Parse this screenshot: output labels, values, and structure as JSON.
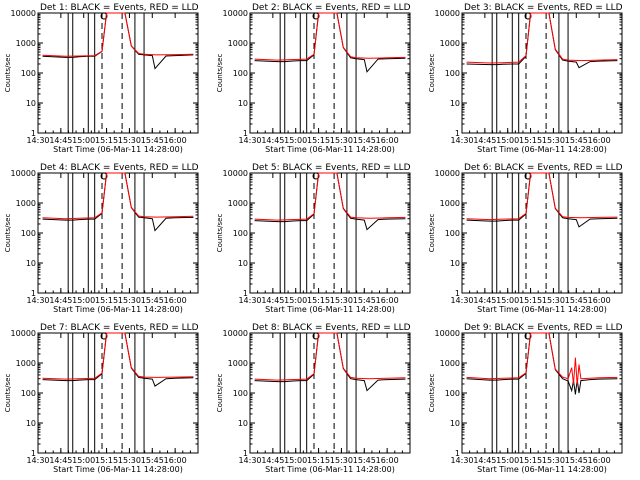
{
  "chart_data": [
    {
      "type": "line",
      "title": "Det 1: BLACK = Events, RED = LLD",
      "xlabel": "Start Time (06-Mar-11 14:28:00)",
      "ylabel": "Counts/sec",
      "yscale": "log",
      "ylim": [
        1,
        10000
      ],
      "xlim": [
        14.5,
        16.25
      ],
      "xticks": [
        "14:30",
        "14:45",
        "15:00",
        "15:15",
        "15:30",
        "15:45",
        "16:00"
      ],
      "yticks": [
        "1",
        "10",
        "100",
        "1000",
        "10000"
      ],
      "vlines_solid": [
        14.83,
        14.88,
        15.05,
        15.12,
        15.56,
        15.66
      ],
      "vlines_dashed": [
        15.2,
        15.42
      ],
      "series": [
        {
          "name": "BLACK = Events",
          "color": "#000000",
          "x": [
            14.55,
            14.8,
            14.88,
            14.95,
            15.05,
            15.12,
            15.2,
            15.25,
            15.45,
            15.52,
            15.6,
            15.66,
            15.75,
            15.78,
            15.9,
            16.0,
            16.2
          ],
          "y": [
            360,
            330,
            330,
            350,
            360,
            360,
            520,
            10000,
            10000,
            800,
            420,
            400,
            380,
            140,
            370,
            380,
            400
          ]
        },
        {
          "name": "RED = LLD",
          "color": "#ff0000",
          "x": [
            14.55,
            14.8,
            14.95,
            15.12,
            15.2,
            15.25,
            15.45,
            15.52,
            15.6,
            15.66,
            15.8,
            16.0,
            16.2
          ],
          "y": [
            390,
            360,
            370,
            380,
            530,
            10000,
            10000,
            800,
            450,
            420,
            400,
            410,
            420
          ]
        }
      ]
    },
    {
      "type": "line",
      "title": "Det 2: BLACK = Events, RED = LLD",
      "xlabel": "Start Time (06-Mar-11 14:28:00)",
      "ylabel": "Counts/sec",
      "yscale": "log",
      "ylim": [
        1,
        10000
      ],
      "xlim": [
        14.5,
        16.25
      ],
      "xticks": [
        "14:30",
        "14:45",
        "15:00",
        "15:15",
        "15:30",
        "15:45",
        "16:00"
      ],
      "yticks": [
        "1",
        "10",
        "100",
        "1000",
        "10000"
      ],
      "vlines_solid": [
        14.83,
        14.88,
        15.05,
        15.12,
        15.56,
        15.66
      ],
      "vlines_dashed": [
        15.2,
        15.42
      ],
      "series": [
        {
          "name": "BLACK = Events",
          "color": "#000000",
          "x": [
            14.55,
            14.8,
            14.88,
            14.95,
            15.05,
            15.12,
            15.2,
            15.25,
            15.45,
            15.52,
            15.6,
            15.66,
            15.75,
            15.78,
            15.9,
            16.0,
            16.2
          ],
          "y": [
            260,
            240,
            240,
            250,
            260,
            260,
            400,
            10000,
            10000,
            700,
            320,
            300,
            280,
            110,
            290,
            300,
            310
          ]
        },
        {
          "name": "RED = LLD",
          "color": "#ff0000",
          "x": [
            14.55,
            14.8,
            14.95,
            15.12,
            15.2,
            15.25,
            15.45,
            15.52,
            15.6,
            15.66,
            15.8,
            16.0,
            16.2
          ],
          "y": [
            290,
            270,
            280,
            290,
            420,
            10000,
            10000,
            720,
            350,
            320,
            310,
            320,
            330
          ]
        }
      ]
    },
    {
      "type": "line",
      "title": "Det 3: BLACK = Events, RED = LLD",
      "xlabel": "Start Time (06-Mar-11 14:28:00)",
      "ylabel": "Counts/sec",
      "yscale": "log",
      "ylim": [
        1,
        10000
      ],
      "xlim": [
        14.5,
        16.25
      ],
      "xticks": [
        "14:30",
        "14:45",
        "15:00",
        "15:15",
        "15:30",
        "15:45",
        "16:00"
      ],
      "yticks": [
        "1",
        "10",
        "100",
        "1000",
        "10000"
      ],
      "vlines_solid": [
        14.83,
        14.88,
        15.05,
        15.12,
        15.56,
        15.66
      ],
      "vlines_dashed": [
        15.2,
        15.42
      ],
      "series": [
        {
          "name": "BLACK = Events",
          "color": "#000000",
          "x": [
            14.55,
            14.8,
            14.88,
            14.95,
            15.05,
            15.12,
            15.2,
            15.25,
            15.45,
            15.52,
            15.6,
            15.66,
            15.75,
            15.78,
            15.9,
            16.0,
            16.2
          ],
          "y": [
            200,
            190,
            190,
            195,
            200,
            200,
            360,
            10000,
            10000,
            600,
            270,
            250,
            230,
            150,
            240,
            250,
            260
          ]
        },
        {
          "name": "RED = LLD",
          "color": "#ff0000",
          "x": [
            14.55,
            14.8,
            14.95,
            15.12,
            15.2,
            15.25,
            15.45,
            15.52,
            15.6,
            15.66,
            15.8,
            16.0,
            16.2
          ],
          "y": [
            230,
            215,
            220,
            230,
            380,
            10000,
            10000,
            620,
            290,
            270,
            260,
            270,
            280
          ]
        }
      ]
    },
    {
      "type": "line",
      "title": "Det 4: BLACK = Events, RED = LLD",
      "xlabel": "Start Time (06-Mar-11 14:28:00)",
      "ylabel": "Counts/sec",
      "yscale": "log",
      "ylim": [
        1,
        10000
      ],
      "xlim": [
        14.5,
        16.25
      ],
      "xticks": [
        "14:30",
        "14:45",
        "15:00",
        "15:15",
        "15:30",
        "15:45",
        "16:00"
      ],
      "yticks": [
        "1",
        "10",
        "100",
        "1000",
        "10000"
      ],
      "vlines_solid": [
        14.83,
        14.88,
        15.05,
        15.12,
        15.56,
        15.66
      ],
      "vlines_dashed": [
        15.2,
        15.42
      ],
      "series": [
        {
          "name": "BLACK = Events",
          "color": "#000000",
          "x": [
            14.55,
            14.8,
            14.88,
            14.95,
            15.05,
            15.12,
            15.2,
            15.25,
            15.45,
            15.52,
            15.6,
            15.66,
            15.75,
            15.78,
            15.9,
            16.0,
            16.2
          ],
          "y": [
            290,
            270,
            270,
            280,
            290,
            290,
            450,
            10000,
            10000,
            700,
            340,
            320,
            300,
            120,
            310,
            320,
            330
          ]
        },
        {
          "name": "RED = LLD",
          "color": "#ff0000",
          "x": [
            14.55,
            14.8,
            14.95,
            15.12,
            15.2,
            15.25,
            15.45,
            15.52,
            15.6,
            15.66,
            15.8,
            16.0,
            16.2
          ],
          "y": [
            320,
            300,
            310,
            320,
            470,
            10000,
            10000,
            720,
            370,
            350,
            340,
            350,
            360
          ]
        }
      ]
    },
    {
      "type": "line",
      "title": "Det 5: BLACK = Events, RED = LLD",
      "xlabel": "Start Time (06-Mar-11 14:28:00)",
      "ylabel": "Counts/sec",
      "yscale": "log",
      "ylim": [
        1,
        10000
      ],
      "xlim": [
        14.5,
        16.25
      ],
      "xticks": [
        "14:30",
        "14:45",
        "15:00",
        "15:15",
        "15:30",
        "15:45",
        "16:00"
      ],
      "yticks": [
        "1",
        "10",
        "100",
        "1000",
        "10000"
      ],
      "vlines_solid": [
        14.83,
        14.88,
        15.05,
        15.12,
        15.56,
        15.66
      ],
      "vlines_dashed": [
        15.2,
        15.42
      ],
      "series": [
        {
          "name": "BLACK = Events",
          "color": "#000000",
          "x": [
            14.55,
            14.8,
            14.88,
            14.95,
            15.05,
            15.12,
            15.2,
            15.25,
            15.45,
            15.52,
            15.6,
            15.66,
            15.75,
            15.78,
            15.9,
            16.0,
            16.2
          ],
          "y": [
            260,
            240,
            240,
            250,
            260,
            260,
            420,
            10000,
            10000,
            650,
            310,
            290,
            270,
            130,
            280,
            290,
            300
          ]
        },
        {
          "name": "RED = LLD",
          "color": "#ff0000",
          "x": [
            14.55,
            14.8,
            14.95,
            15.12,
            15.2,
            15.25,
            15.45,
            15.52,
            15.6,
            15.66,
            15.8,
            16.0,
            16.2
          ],
          "y": [
            290,
            270,
            280,
            290,
            440,
            10000,
            10000,
            670,
            340,
            320,
            310,
            320,
            330
          ]
        }
      ]
    },
    {
      "type": "line",
      "title": "Det 6: BLACK = Events, RED = LLD",
      "xlabel": "Start Time (06-Mar-11 14:28:00)",
      "ylabel": "Counts/sec",
      "yscale": "log",
      "ylim": [
        1,
        10000
      ],
      "xlim": [
        14.5,
        16.25
      ],
      "xticks": [
        "14:30",
        "14:45",
        "15:00",
        "15:15",
        "15:30",
        "15:45",
        "16:00"
      ],
      "yticks": [
        "1",
        "10",
        "100",
        "1000",
        "10000"
      ],
      "vlines_solid": [
        14.83,
        14.88,
        15.05,
        15.12,
        15.56,
        15.66
      ],
      "vlines_dashed": [
        15.2,
        15.42
      ],
      "series": [
        {
          "name": "BLACK = Events",
          "color": "#000000",
          "x": [
            14.55,
            14.8,
            14.88,
            14.95,
            15.05,
            15.12,
            15.2,
            15.25,
            15.45,
            15.52,
            15.6,
            15.66,
            15.75,
            15.78,
            15.9,
            16.0,
            16.2
          ],
          "y": [
            270,
            250,
            250,
            260,
            270,
            270,
            430,
            10000,
            10000,
            650,
            320,
            300,
            280,
            160,
            290,
            300,
            310
          ]
        },
        {
          "name": "RED = LLD",
          "color": "#ff0000",
          "x": [
            14.55,
            14.8,
            14.95,
            15.12,
            15.2,
            15.25,
            15.45,
            15.52,
            15.6,
            15.66,
            15.8,
            16.0,
            16.2
          ],
          "y": [
            300,
            280,
            290,
            300,
            450,
            10000,
            10000,
            670,
            350,
            330,
            320,
            330,
            340
          ]
        }
      ]
    },
    {
      "type": "line",
      "title": "Det 7: BLACK = Events, RED = LLD",
      "xlabel": "Start Time (06-Mar-11 14:28:00)",
      "ylabel": "Counts/sec",
      "yscale": "log",
      "ylim": [
        1,
        10000
      ],
      "xlim": [
        14.5,
        16.25
      ],
      "xticks": [
        "14:30",
        "14:45",
        "15:00",
        "15:15",
        "15:30",
        "15:45",
        "16:00"
      ],
      "yticks": [
        "1",
        "10",
        "100",
        "1000",
        "10000"
      ],
      "vlines_solid": [
        14.83,
        14.88,
        15.05,
        15.12,
        15.56,
        15.66
      ],
      "vlines_dashed": [
        15.2,
        15.42
      ],
      "series": [
        {
          "name": "BLACK = Events",
          "color": "#000000",
          "x": [
            14.55,
            14.8,
            14.88,
            14.95,
            15.05,
            15.12,
            15.2,
            15.25,
            15.45,
            15.52,
            15.6,
            15.66,
            15.75,
            15.78,
            15.9,
            16.0,
            16.2
          ],
          "y": [
            280,
            260,
            260,
            270,
            280,
            280,
            440,
            10000,
            10000,
            680,
            330,
            310,
            290,
            170,
            300,
            310,
            320
          ]
        },
        {
          "name": "RED = LLD",
          "color": "#ff0000",
          "x": [
            14.55,
            14.8,
            14.95,
            15.12,
            15.2,
            15.25,
            15.45,
            15.52,
            15.6,
            15.66,
            15.8,
            16.0,
            16.2
          ],
          "y": [
            310,
            290,
            300,
            310,
            460,
            10000,
            10000,
            700,
            360,
            340,
            330,
            340,
            350
          ]
        }
      ]
    },
    {
      "type": "line",
      "title": "Det 8: BLACK = Events, RED = LLD",
      "xlabel": "Start Time (06-Mar-11 14:28:00)",
      "ylabel": "Counts/sec",
      "yscale": "log",
      "ylim": [
        1,
        10000
      ],
      "xlim": [
        14.5,
        16.25
      ],
      "xticks": [
        "14:30",
        "14:45",
        "15:00",
        "15:15",
        "15:30",
        "15:45",
        "16:00"
      ],
      "yticks": [
        "1",
        "10",
        "100",
        "1000",
        "10000"
      ],
      "vlines_solid": [
        14.83,
        14.88,
        15.05,
        15.12,
        15.56,
        15.66
      ],
      "vlines_dashed": [
        15.2,
        15.42
      ],
      "series": [
        {
          "name": "BLACK = Events",
          "color": "#000000",
          "x": [
            14.55,
            14.8,
            14.88,
            14.95,
            15.05,
            15.12,
            15.2,
            15.25,
            15.45,
            15.52,
            15.6,
            15.66,
            15.75,
            15.78,
            15.9,
            16.0,
            16.2
          ],
          "y": [
            260,
            240,
            240,
            250,
            260,
            260,
            420,
            10000,
            10000,
            650,
            300,
            280,
            260,
            120,
            270,
            280,
            290
          ]
        },
        {
          "name": "RED = LLD",
          "color": "#ff0000",
          "x": [
            14.55,
            14.8,
            14.95,
            15.12,
            15.2,
            15.25,
            15.45,
            15.52,
            15.6,
            15.66,
            15.8,
            16.0,
            16.2
          ],
          "y": [
            290,
            270,
            280,
            290,
            440,
            10000,
            10000,
            670,
            330,
            310,
            300,
            310,
            320
          ]
        }
      ]
    },
    {
      "type": "line",
      "title": "Det 9: BLACK = Events, RED = LLD",
      "xlabel": "Start Time (06-Mar-11 14:28:00)",
      "ylabel": "Counts/sec",
      "yscale": "log",
      "ylim": [
        1,
        10000
      ],
      "xlim": [
        14.5,
        16.25
      ],
      "xticks": [
        "14:30",
        "14:45",
        "15:00",
        "15:15",
        "15:30",
        "15:45",
        "16:00"
      ],
      "yticks": [
        "1",
        "10",
        "100",
        "1000",
        "10000"
      ],
      "vlines_solid": [
        14.83,
        14.88,
        15.05,
        15.12,
        15.56,
        15.66
      ],
      "vlines_dashed": [
        15.2,
        15.42
      ],
      "series": [
        {
          "name": "BLACK = Events",
          "color": "#000000",
          "x": [
            14.55,
            14.8,
            14.88,
            14.95,
            15.05,
            15.12,
            15.2,
            15.25,
            15.45,
            15.52,
            15.6,
            15.66,
            15.7,
            15.72,
            15.74,
            15.76,
            15.78,
            15.8,
            15.9,
            16.0,
            16.2
          ],
          "y": [
            300,
            270,
            270,
            280,
            290,
            290,
            450,
            10000,
            10000,
            600,
            300,
            250,
            120,
            260,
            90,
            280,
            100,
            260,
            280,
            290,
            300
          ]
        },
        {
          "name": "RED = LLD",
          "color": "#ff0000",
          "x": [
            14.55,
            14.8,
            14.95,
            15.12,
            15.2,
            15.25,
            15.45,
            15.52,
            15.6,
            15.66,
            15.7,
            15.72,
            15.74,
            15.76,
            15.78,
            15.8,
            15.9,
            16.0,
            16.2
          ],
          "y": [
            330,
            300,
            310,
            320,
            470,
            10000,
            10000,
            620,
            340,
            300,
            700,
            200,
            1500,
            180,
            900,
            300,
            310,
            320,
            330
          ]
        }
      ]
    }
  ]
}
